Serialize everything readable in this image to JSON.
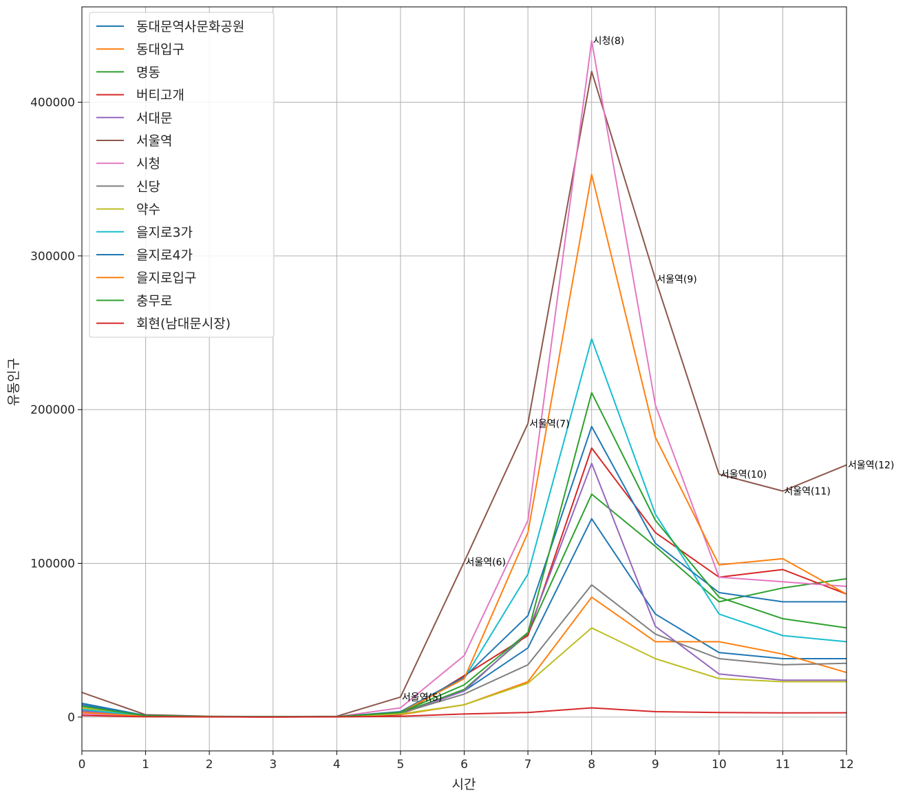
{
  "chart_data": {
    "type": "line",
    "title": "",
    "xlabel": "시간",
    "ylabel": "유동인구",
    "xlim": [
      0,
      12
    ],
    "ylim": [
      -22000,
      462000
    ],
    "x": [
      0,
      1,
      2,
      3,
      4,
      5,
      6,
      7,
      8,
      9,
      10,
      11,
      12
    ],
    "xticks": [
      "0",
      "1",
      "2",
      "3",
      "4",
      "5",
      "6",
      "7",
      "8",
      "9",
      "10",
      "11",
      "12"
    ],
    "yticks": [
      {
        "value": 0,
        "label": "0"
      },
      {
        "value": 100000,
        "label": "100000"
      },
      {
        "value": 200000,
        "label": "200000"
      },
      {
        "value": 300000,
        "label": "300000"
      },
      {
        "value": 400000,
        "label": "400000"
      }
    ],
    "grid": true,
    "legend_position": "upper-left",
    "series": [
      {
        "name": "동대문역사문화공원",
        "color": "#1f77b4",
        "values": [
          9000,
          1000,
          300,
          200,
          300,
          3000,
          17000,
          45000,
          129000,
          67000,
          42000,
          38000,
          38000
        ]
      },
      {
        "name": "동대입구",
        "color": "#ff7f0e",
        "values": [
          3000,
          500,
          200,
          100,
          200,
          1500,
          8000,
          23000,
          78000,
          49000,
          49000,
          41000,
          29000
        ]
      },
      {
        "name": "명동",
        "color": "#2ca02c",
        "values": [
          4000,
          800,
          300,
          200,
          300,
          2500,
          18000,
          54000,
          145000,
          111000,
          75000,
          84000,
          90000
        ]
      },
      {
        "name": "버티고개",
        "color": "#d62728",
        "values": [
          3000,
          500,
          200,
          100,
          200,
          1500,
          27000,
          53000,
          175000,
          120000,
          91000,
          96000,
          80000
        ]
      },
      {
        "name": "서대문",
        "color": "#9467bd",
        "values": [
          4000,
          600,
          200,
          100,
          200,
          2000,
          17000,
          55000,
          165000,
          59000,
          28000,
          24000,
          24000
        ]
      },
      {
        "name": "서울역",
        "color": "#8c564b",
        "values": [
          16000,
          1500,
          500,
          300,
          500,
          13000,
          101000,
          191000,
          420000,
          285000,
          158000,
          147000,
          164000
        ]
      },
      {
        "name": "시청",
        "color": "#e377c2",
        "values": [
          2000,
          500,
          200,
          100,
          200,
          6000,
          40000,
          128000,
          440000,
          203000,
          91000,
          88000,
          85000
        ]
      },
      {
        "name": "신당",
        "color": "#7f7f7f",
        "values": [
          5000,
          800,
          300,
          200,
          300,
          2500,
          15000,
          34000,
          86000,
          54000,
          38000,
          34000,
          35000
        ]
      },
      {
        "name": "약수",
        "color": "#bcbd22",
        "values": [
          6000,
          800,
          300,
          200,
          300,
          2000,
          8000,
          22000,
          58000,
          38000,
          25000,
          23000,
          23000
        ]
      },
      {
        "name": "을지로3가",
        "color": "#17becf",
        "values": [
          5000,
          800,
          300,
          200,
          300,
          3000,
          25000,
          93000,
          246000,
          132000,
          67000,
          53000,
          49000
        ]
      },
      {
        "name": "을지로4가",
        "color": "#1f77b4",
        "values": [
          8000,
          1000,
          300,
          200,
          300,
          3500,
          26000,
          66000,
          189000,
          113000,
          81000,
          75000,
          75000
        ]
      },
      {
        "name": "을지로입구",
        "color": "#ff7f0e",
        "values": [
          3000,
          500,
          200,
          100,
          200,
          3000,
          25000,
          120000,
          353000,
          182000,
          99000,
          103000,
          80000
        ]
      },
      {
        "name": "충무로",
        "color": "#2ca02c",
        "values": [
          7000,
          900,
          300,
          200,
          300,
          3000,
          21000,
          55000,
          211000,
          128000,
          78000,
          64000,
          58000
        ]
      },
      {
        "name": "회현(남대문시장)",
        "color": "#d62728",
        "values": [
          1000,
          200,
          100,
          50,
          100,
          500,
          2000,
          3000,
          6000,
          3500,
          3000,
          2700,
          2800
        ]
      }
    ],
    "annotations": [
      {
        "text": "서울역(5)",
        "x": 5,
        "y": 13000
      },
      {
        "text": "서울역(6)",
        "x": 6,
        "y": 101000
      },
      {
        "text": "서울역(7)",
        "x": 7,
        "y": 191000
      },
      {
        "text": "시청(8)",
        "x": 8,
        "y": 440000
      },
      {
        "text": "서울역(9)",
        "x": 9,
        "y": 285000
      },
      {
        "text": "서울역(10)",
        "x": 10,
        "y": 158000
      },
      {
        "text": "서울역(11)",
        "x": 11,
        "y": 147000
      },
      {
        "text": "서울역(12)",
        "x": 12,
        "y": 164000
      }
    ]
  }
}
